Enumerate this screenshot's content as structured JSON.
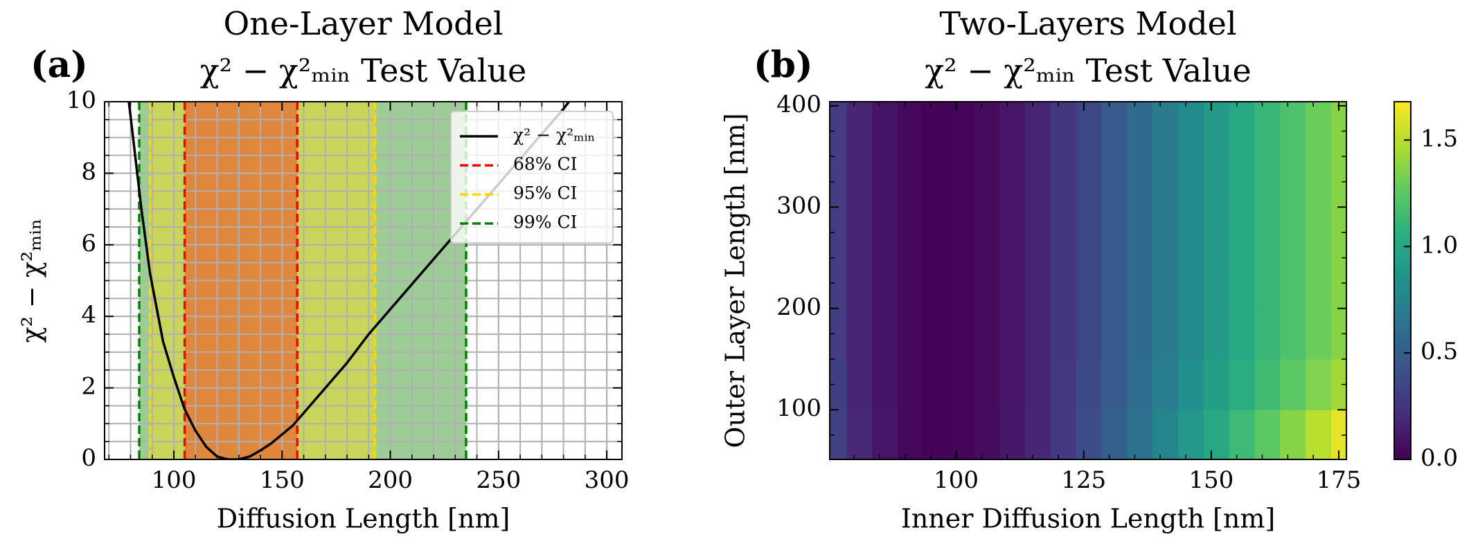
{
  "chart_data": [
    {
      "type": "line",
      "panel_label": "(a)",
      "title": "One-Layer Model",
      "subtitle": "χ² − χ²ₘᵢₙ Test Value",
      "xlabel": "Diffusion Length [nm]",
      "ylabel": "χ² − χ²ₘᵢₙ",
      "xlim": [
        68,
        307
      ],
      "ylim": [
        0,
        10
      ],
      "xticks": [
        100,
        150,
        200,
        250,
        300
      ],
      "yticks": [
        0,
        2,
        4,
        6,
        8,
        10
      ],
      "grid": true,
      "legend": "upper right",
      "series": [
        {
          "name": "χ² − χ²ₘᵢₙ",
          "color": "#000000",
          "x": [
            78,
            80,
            85,
            89,
            95,
            100,
            105,
            110,
            115,
            120,
            125,
            130,
            135,
            140,
            145,
            150,
            155,
            160,
            170,
            180,
            190,
            200,
            210,
            220,
            230,
            240,
            250,
            260,
            270,
            280,
            285
          ],
          "values": [
            10.6,
            9.6,
            7.0,
            5.2,
            3.3,
            2.3,
            1.4,
            0.8,
            0.35,
            0.08,
            0.0,
            0.0,
            0.08,
            0.25,
            0.45,
            0.7,
            0.95,
            1.3,
            2.0,
            2.7,
            3.5,
            4.2,
            4.9,
            5.6,
            6.3,
            7.0,
            7.7,
            8.4,
            9.1,
            9.8,
            10.2
          ]
        }
      ],
      "intervals": [
        {
          "name": "68% CI",
          "color": "#ff0000",
          "fill": "#e0873e",
          "bounds": [
            105,
            157
          ]
        },
        {
          "name": "95% CI",
          "color": "#ffd700",
          "fill": "#c8d55a",
          "bounds": [
            89,
            193
          ]
        },
        {
          "name": "99% CI",
          "color": "#008000",
          "fill": "#9dcc96",
          "bounds": [
            84,
            235
          ]
        }
      ]
    },
    {
      "type": "heatmap",
      "panel_label": "(b)",
      "title": "Two-Layers Model",
      "subtitle": "χ² − χ²ₘᵢₙ Test Value",
      "xlabel": "Inner Diffusion Length [nm]",
      "ylabel": "Outer Layer Length  [nm]",
      "xlim": [
        75.2,
        176.5
      ],
      "ylim": [
        51,
        404
      ],
      "xticks": [
        100,
        125,
        150,
        175
      ],
      "yticks": [
        100,
        200,
        300,
        400
      ],
      "colormap": "viridis",
      "clim": [
        0,
        1.68
      ],
      "cticks": [
        {
          "value": 0,
          "label": "0.0"
        },
        0.5,
        {
          "value": 1,
          "label": "1.0"
        },
        1.5
      ],
      "x": [
        76,
        81,
        86,
        91,
        96,
        101,
        106,
        111,
        116,
        121,
        126,
        131,
        136,
        141,
        146,
        151,
        156,
        161,
        166,
        171,
        176
      ],
      "y": [
        75,
        125,
        175,
        225,
        275,
        325,
        375
      ],
      "values": [
        [
          0.32,
          0.19,
          0.1,
          0.03,
          0.01,
          0.02,
          0.05,
          0.11,
          0.18,
          0.28,
          0.39,
          0.51,
          0.63,
          0.76,
          0.88,
          1.01,
          1.13,
          1.25,
          1.37,
          1.5,
          1.62
        ],
        [
          0.31,
          0.18,
          0.09,
          0.03,
          0.01,
          0.02,
          0.05,
          0.1,
          0.17,
          0.27,
          0.37,
          0.48,
          0.6,
          0.71,
          0.83,
          0.94,
          1.05,
          1.15,
          1.25,
          1.35,
          1.44
        ],
        [
          0.3,
          0.18,
          0.09,
          0.03,
          0.01,
          0.02,
          0.05,
          0.1,
          0.17,
          0.26,
          0.36,
          0.47,
          0.58,
          0.69,
          0.8,
          0.91,
          1.01,
          1.11,
          1.2,
          1.29,
          1.37
        ],
        [
          0.3,
          0.18,
          0.09,
          0.03,
          0.01,
          0.02,
          0.05,
          0.1,
          0.17,
          0.26,
          0.36,
          0.47,
          0.58,
          0.69,
          0.8,
          0.91,
          1.01,
          1.11,
          1.2,
          1.29,
          1.37
        ],
        [
          0.3,
          0.18,
          0.09,
          0.03,
          0.01,
          0.02,
          0.05,
          0.1,
          0.17,
          0.26,
          0.36,
          0.47,
          0.58,
          0.69,
          0.8,
          0.91,
          1.01,
          1.11,
          1.2,
          1.29,
          1.37
        ],
        [
          0.3,
          0.18,
          0.09,
          0.03,
          0.01,
          0.02,
          0.05,
          0.1,
          0.17,
          0.26,
          0.36,
          0.47,
          0.58,
          0.69,
          0.8,
          0.91,
          1.01,
          1.11,
          1.2,
          1.29,
          1.37
        ],
        [
          0.3,
          0.18,
          0.09,
          0.03,
          0.01,
          0.02,
          0.05,
          0.1,
          0.17,
          0.26,
          0.36,
          0.47,
          0.58,
          0.69,
          0.8,
          0.91,
          1.01,
          1.11,
          1.2,
          1.29,
          1.37
        ]
      ]
    }
  ]
}
